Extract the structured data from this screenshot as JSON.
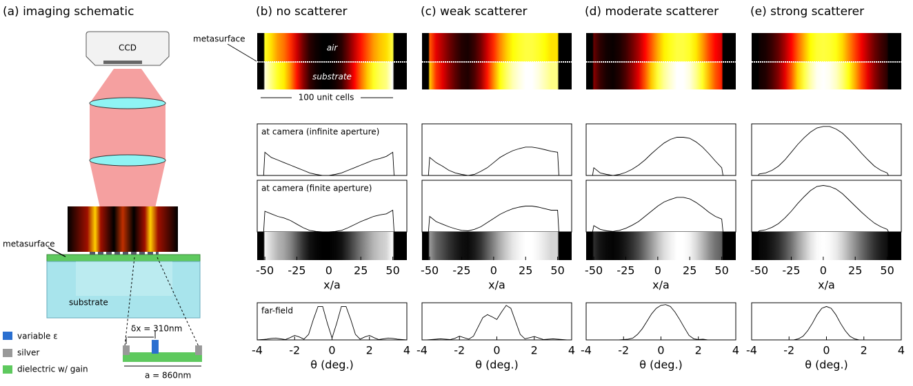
{
  "schematic": {
    "title": "(a) imaging schematic",
    "ccd": "CCD",
    "metasurface": "metasurface",
    "substrate": "substrate",
    "dx_label": "δx = 310nm",
    "a_label": "a = 860nm",
    "legend": [
      "variable ε",
      "silver",
      "dielectric w/ gain"
    ]
  },
  "field_maps": {
    "metasurface": "metasurface",
    "air": "air",
    "substrate": "substrate",
    "span": "100 unit cells"
  },
  "chart_data": [
    {
      "type": "line",
      "title": "(b) no scatterer",
      "annotation": "at camera (infinite aperture)",
      "xlim": [
        -56,
        61
      ],
      "ylim": [
        0,
        1
      ],
      "x": [
        -55,
        -51,
        -50,
        -45,
        -40,
        -35,
        -30,
        -25,
        -20,
        -15,
        -10,
        -5,
        0,
        5,
        10,
        15,
        20,
        25,
        30,
        35,
        40,
        45,
        50,
        51,
        55
      ],
      "values": [
        0,
        0,
        0.45,
        0.35,
        0.3,
        0.25,
        0.2,
        0.15,
        0.1,
        0.05,
        0.02,
        0,
        0,
        0.02,
        0.05,
        0.1,
        0.15,
        0.2,
        0.25,
        0.3,
        0.33,
        0.37,
        0.45,
        0,
        0
      ]
    },
    {
      "type": "line",
      "annotation": "at camera (finite aperture)",
      "xlim": [
        -56,
        61
      ],
      "ylim": [
        0,
        1
      ],
      "xticks": [
        -50,
        -25,
        0,
        25,
        50
      ],
      "xlabel": "x/a",
      "x": [
        -55,
        -51,
        -50,
        -45,
        -40,
        -35,
        -30,
        -25,
        -20,
        -15,
        -10,
        -5,
        0,
        5,
        10,
        15,
        20,
        25,
        30,
        35,
        40,
        45,
        50,
        51,
        55
      ],
      "values": [
        0,
        0,
        0.4,
        0.35,
        0.3,
        0.27,
        0.22,
        0.15,
        0.08,
        0.03,
        0.01,
        0,
        0,
        0.01,
        0.03,
        0.08,
        0.14,
        0.2,
        0.25,
        0.3,
        0.33,
        0.35,
        0.42,
        0,
        0
      ]
    },
    {
      "type": "line",
      "annotation": "far-field",
      "xlim": [
        -4,
        4
      ],
      "ylim": [
        0,
        1
      ],
      "xticks": [
        -4,
        -2,
        0,
        2,
        4
      ],
      "xlabel": "θ (deg.)",
      "x": [
        -4,
        -3.75,
        -3.5,
        -3.25,
        -3,
        -2.75,
        -2.5,
        -2.25,
        -2,
        -1.75,
        -1.5,
        -1.25,
        -1,
        -0.75,
        -0.5,
        -0.25,
        0,
        0.25,
        0.5,
        0.75,
        1,
        1.25,
        1.5,
        1.75,
        2,
        2.25,
        2.5,
        2.75,
        3,
        3.25,
        3.5,
        3.75,
        4
      ],
      "values": [
        0,
        0.01,
        0.02,
        0.04,
        0.05,
        0.03,
        0.01,
        0.06,
        0.12,
        0.08,
        0.02,
        0.15,
        0.55,
        0.9,
        0.9,
        0.45,
        0.05,
        0.45,
        0.9,
        0.9,
        0.55,
        0.15,
        0.02,
        0.08,
        0.12,
        0.06,
        0.01,
        0.03,
        0.05,
        0.04,
        0.02,
        0.01,
        0
      ]
    },
    {
      "type": "line",
      "title": "(c) weak scatterer",
      "xlim": [
        -56,
        61
      ],
      "ylim": [
        0,
        1
      ],
      "x": [
        -55,
        -51,
        -50,
        -45,
        -40,
        -35,
        -30,
        -25,
        -20,
        -15,
        -10,
        -5,
        0,
        5,
        10,
        15,
        20,
        25,
        30,
        35,
        40,
        45,
        50,
        51,
        55
      ],
      "values": [
        0,
        0,
        0.35,
        0.25,
        0.18,
        0.1,
        0.05,
        0.02,
        0,
        0.02,
        0.08,
        0.15,
        0.25,
        0.35,
        0.42,
        0.48,
        0.52,
        0.55,
        0.55,
        0.53,
        0.5,
        0.47,
        0.45,
        0,
        0
      ]
    },
    {
      "type": "line",
      "xlim": [
        -56,
        61
      ],
      "ylim": [
        0,
        1
      ],
      "xticks": [
        -50,
        -25,
        0,
        25,
        50
      ],
      "xlabel": "x/a",
      "x": [
        -55,
        -51,
        -50,
        -45,
        -40,
        -35,
        -30,
        -25,
        -20,
        -15,
        -10,
        -5,
        0,
        5,
        10,
        15,
        20,
        25,
        30,
        35,
        40,
        45,
        50,
        51,
        55
      ],
      "values": [
        0,
        0,
        0.3,
        0.2,
        0.15,
        0.1,
        0.06,
        0.03,
        0.02,
        0.05,
        0.1,
        0.18,
        0.26,
        0.34,
        0.4,
        0.45,
        0.48,
        0.5,
        0.5,
        0.48,
        0.45,
        0.42,
        0.42,
        0,
        0
      ]
    },
    {
      "type": "line",
      "xlim": [
        -4,
        4
      ],
      "ylim": [
        0,
        1
      ],
      "xticks": [
        -4,
        -2,
        0,
        2,
        4
      ],
      "xlabel": "θ (deg.)",
      "x": [
        -4,
        -3.75,
        -3.5,
        -3.25,
        -3,
        -2.75,
        -2.5,
        -2.25,
        -2,
        -1.75,
        -1.5,
        -1.25,
        -1,
        -0.75,
        -0.5,
        -0.25,
        0,
        0.25,
        0.5,
        0.75,
        1,
        1.25,
        1.5,
        1.75,
        2,
        2.25,
        2.5,
        2.75,
        3,
        3.25,
        3.5,
        3.75,
        4
      ],
      "values": [
        0,
        0,
        0.01,
        0.02,
        0.03,
        0.02,
        0.01,
        0.04,
        0.1,
        0.06,
        0.02,
        0.1,
        0.35,
        0.6,
        0.68,
        0.62,
        0.55,
        0.75,
        0.93,
        0.85,
        0.5,
        0.15,
        0.03,
        0.06,
        0.09,
        0.05,
        0.01,
        0.02,
        0.03,
        0.02,
        0.01,
        0,
        0
      ]
    },
    {
      "type": "line",
      "title": "(d) moderate scatterer",
      "xlim": [
        -56,
        61
      ],
      "ylim": [
        0,
        1
      ],
      "x": [
        -55,
        -51,
        -50,
        -45,
        -40,
        -35,
        -30,
        -25,
        -20,
        -15,
        -10,
        -5,
        0,
        5,
        10,
        15,
        20,
        25,
        30,
        35,
        40,
        45,
        50,
        51,
        55
      ],
      "values": [
        0,
        0,
        0.15,
        0.05,
        0.02,
        0,
        0.02,
        0.06,
        0.12,
        0.2,
        0.3,
        0.42,
        0.53,
        0.63,
        0.7,
        0.74,
        0.74,
        0.72,
        0.65,
        0.55,
        0.42,
        0.28,
        0.15,
        0,
        0
      ]
    },
    {
      "type": "line",
      "xlim": [
        -56,
        61
      ],
      "ylim": [
        0,
        1
      ],
      "xticks": [
        -50,
        -25,
        0,
        25,
        50
      ],
      "xlabel": "x/a",
      "x": [
        -55,
        -51,
        -50,
        -45,
        -40,
        -35,
        -30,
        -25,
        -20,
        -15,
        -10,
        -5,
        0,
        5,
        10,
        15,
        20,
        25,
        30,
        35,
        40,
        45,
        50,
        51,
        55
      ],
      "values": [
        0,
        0,
        0.12,
        0.05,
        0.02,
        0.01,
        0.03,
        0.07,
        0.13,
        0.2,
        0.3,
        0.4,
        0.5,
        0.58,
        0.63,
        0.67,
        0.67,
        0.64,
        0.57,
        0.48,
        0.38,
        0.3,
        0.25,
        0,
        0
      ]
    },
    {
      "type": "line",
      "xlim": [
        -4,
        4
      ],
      "ylim": [
        0,
        1
      ],
      "xticks": [
        -4,
        -2,
        0,
        2,
        4
      ],
      "xlabel": "θ (deg.)",
      "x": [
        -4,
        -3.75,
        -3.5,
        -3.25,
        -3,
        -2.75,
        -2.5,
        -2.25,
        -2,
        -1.75,
        -1.5,
        -1.25,
        -1,
        -0.75,
        -0.5,
        -0.25,
        0,
        0.25,
        0.5,
        0.75,
        1,
        1.25,
        1.5,
        1.75,
        2,
        2.25,
        2.5,
        2.75,
        3,
        3.25,
        3.5,
        3.75,
        4
      ],
      "values": [
        0,
        0,
        0,
        0,
        0,
        0,
        0,
        0,
        0.01,
        0.02,
        0.05,
        0.15,
        0.3,
        0.5,
        0.7,
        0.85,
        0.93,
        0.95,
        0.9,
        0.75,
        0.55,
        0.33,
        0.12,
        0.03,
        0.01,
        0.02,
        0,
        0,
        0,
        0,
        0,
        0,
        0
      ]
    },
    {
      "type": "line",
      "title": "(e) strong scatterer",
      "xlim": [
        -56,
        61
      ],
      "ylim": [
        0,
        1
      ],
      "x": [
        -55,
        -51,
        -50,
        -45,
        -40,
        -35,
        -30,
        -25,
        -20,
        -15,
        -10,
        -5,
        0,
        5,
        10,
        15,
        20,
        25,
        30,
        35,
        40,
        45,
        50,
        51,
        55
      ],
      "values": [
        0,
        0,
        0.03,
        0.05,
        0.1,
        0.18,
        0.3,
        0.45,
        0.6,
        0.73,
        0.84,
        0.92,
        0.95,
        0.95,
        0.9,
        0.82,
        0.7,
        0.57,
        0.43,
        0.3,
        0.18,
        0.1,
        0.05,
        0,
        0
      ]
    },
    {
      "type": "line",
      "xlim": [
        -56,
        61
      ],
      "ylim": [
        0,
        1
      ],
      "xticks": [
        -50,
        -25,
        0,
        25,
        50
      ],
      "xlabel": "x/a",
      "x": [
        -55,
        -51,
        -50,
        -45,
        -40,
        -35,
        -30,
        -25,
        -20,
        -15,
        -10,
        -5,
        0,
        5,
        10,
        15,
        20,
        25,
        30,
        35,
        40,
        45,
        50,
        51,
        55
      ],
      "values": [
        0,
        0,
        0.02,
        0.04,
        0.09,
        0.16,
        0.27,
        0.4,
        0.55,
        0.68,
        0.8,
        0.88,
        0.9,
        0.88,
        0.83,
        0.74,
        0.62,
        0.5,
        0.38,
        0.27,
        0.17,
        0.1,
        0.05,
        0,
        0
      ]
    },
    {
      "type": "line",
      "xlim": [
        -4,
        4
      ],
      "ylim": [
        0,
        1
      ],
      "xticks": [
        -4,
        -2,
        0,
        2,
        4
      ],
      "xlabel": "θ (deg.)",
      "x": [
        -4,
        -3.75,
        -3.5,
        -3.25,
        -3,
        -2.75,
        -2.5,
        -2.25,
        -2,
        -1.75,
        -1.5,
        -1.25,
        -1,
        -0.75,
        -0.5,
        -0.25,
        0,
        0.25,
        0.5,
        0.75,
        1,
        1.25,
        1.5,
        1.75,
        2,
        2.25,
        2.5,
        2.75,
        3,
        3.25,
        3.5,
        3.75,
        4
      ],
      "values": [
        0,
        0,
        0,
        0,
        0,
        0,
        0,
        0,
        0,
        0,
        0.03,
        0.1,
        0.25,
        0.45,
        0.68,
        0.85,
        0.9,
        0.85,
        0.68,
        0.45,
        0.25,
        0.1,
        0.03,
        0,
        0,
        0,
        0,
        0,
        0,
        0,
        0,
        0,
        0
      ]
    }
  ]
}
